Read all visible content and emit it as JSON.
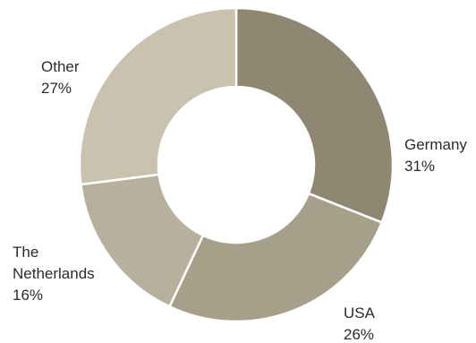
{
  "chart_data": {
    "type": "pie",
    "donut": true,
    "start": "top",
    "direction": "clockwise",
    "slices": [
      {
        "label_lines": [
          "Germany"
        ],
        "pct_label": "31%",
        "value": 31,
        "color": "#8e8873"
      },
      {
        "label_lines": [
          "USA"
        ],
        "pct_label": "26%",
        "value": 26,
        "color": "#a6a08b"
      },
      {
        "label_lines": [
          "The",
          "Netherlands"
        ],
        "pct_label": "16%",
        "value": 16,
        "color": "#b6b09c"
      },
      {
        "label_lines": [
          "Other"
        ],
        "pct_label": "27%",
        "value": 27,
        "color": "#c8c2ae"
      }
    ]
  }
}
